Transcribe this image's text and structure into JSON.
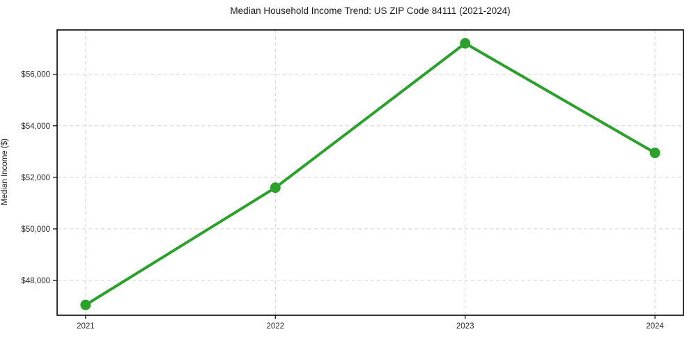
{
  "chart": {
    "title": "Median Household Income Trend: US ZIP Code 84111 (2021-2024)",
    "ylabel": "Median Income ($)"
  },
  "chart_data": {
    "type": "line",
    "title": "Median Household Income Trend: US ZIP Code 84111 (2021-2024)",
    "xlabel": "",
    "ylabel": "Median Income ($)",
    "categories": [
      "2021",
      "2022",
      "2023",
      "2024"
    ],
    "series": [
      {
        "name": "Median Household Income",
        "values": [
          47050,
          51600,
          57200,
          52950
        ]
      }
    ],
    "y_ticks": {
      "values": [
        48000,
        50000,
        52000,
        54000,
        56000
      ],
      "labels": [
        "$48,000",
        "$50,000",
        "$52,000",
        "$54,000",
        "$56,000"
      ]
    },
    "ylim": [
      46650,
      57720
    ],
    "grid": "dashed, both axes",
    "legend_position": "none",
    "line_color": "#2ca02c",
    "marker": "circle",
    "grid_color": "#d4d4d4",
    "spine_color": "#000000",
    "background_color": "#ffffff"
  }
}
